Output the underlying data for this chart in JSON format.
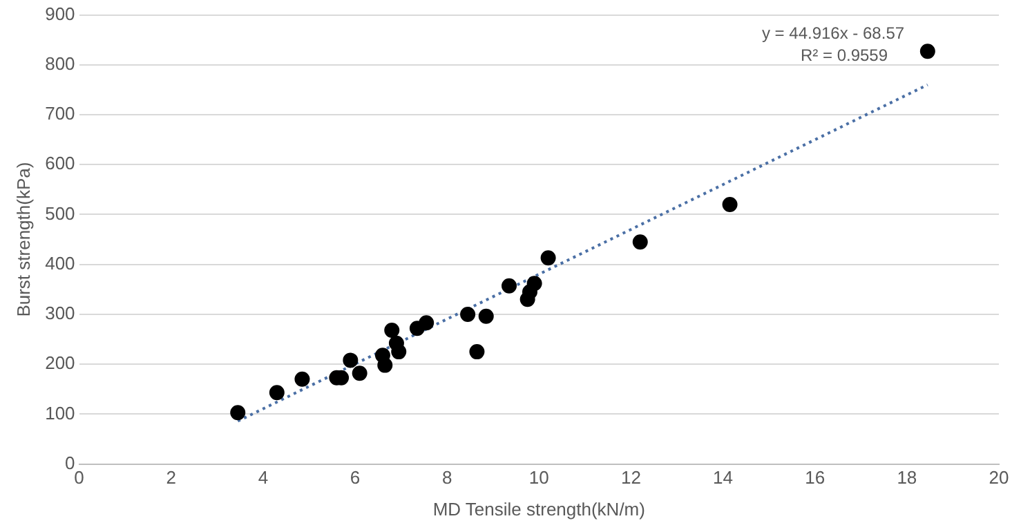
{
  "chart_data": {
    "type": "scatter",
    "xlabel": "MD Tensile strength(kN/m)",
    "ylabel": "Burst strength(kPa)",
    "annotations": [
      "y = 44.916x - 68.57",
      "R² = 0.9559"
    ],
    "series": [
      {
        "color": "#000000",
        "marker": "circle",
        "x": [
          3.45,
          4.3,
          4.85,
          5.6,
          5.7,
          5.9,
          6.1,
          6.6,
          6.65,
          6.8,
          6.9,
          6.95,
          7.35,
          7.55,
          8.45,
          8.65,
          8.85,
          9.35,
          9.75,
          9.8,
          9.9,
          10.2,
          12.2,
          14.15,
          18.45
        ],
        "values": [
          103,
          143,
          170,
          173,
          173,
          208,
          182,
          218,
          198,
          268,
          242,
          225,
          272,
          283,
          300,
          225,
          296,
          357,
          330,
          345,
          362,
          413,
          445,
          520,
          827
        ]
      },
      {
        "type": "line",
        "color": "#4a6fa5",
        "line_style": "dotted",
        "marker": "none",
        "x": [
          3.45,
          18.45
        ],
        "values": [
          86,
          760
        ]
      }
    ],
    "xlim": [
      0,
      20
    ],
    "xticks": [
      0,
      2,
      4,
      6,
      8,
      10,
      12,
      14,
      16,
      18,
      20
    ],
    "ylim": [
      0,
      900
    ],
    "yticks": [
      0,
      100,
      200,
      300,
      400,
      500,
      600,
      700,
      800,
      900
    ],
    "grid": "y",
    "legend": false
  }
}
